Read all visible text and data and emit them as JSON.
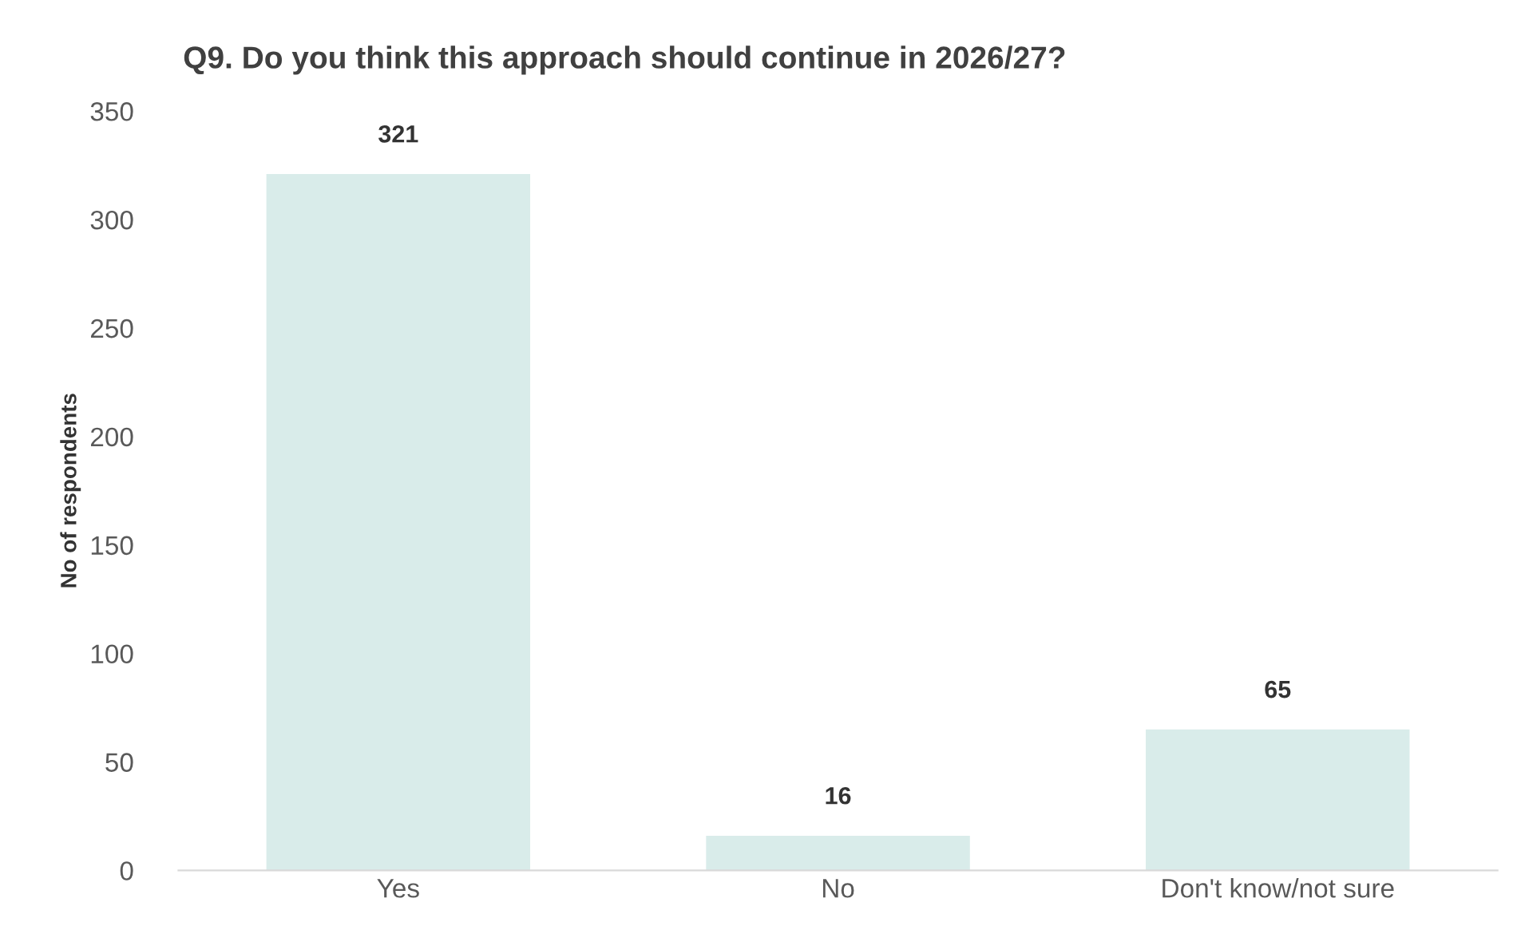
{
  "chart_data": {
    "type": "bar",
    "title": "Q9. Do you think this approach should continue in 2026/27?",
    "ylabel": "No of respondents",
    "categories": [
      "Yes",
      "No",
      "Don't know/not sure"
    ],
    "values": [
      321,
      16,
      65
    ],
    "color": "#d9ecea",
    "ylim": [
      0,
      350
    ],
    "yticks": [
      0,
      50,
      100,
      150,
      200,
      250,
      300,
      350
    ],
    "grid": false,
    "data_labels": true
  }
}
